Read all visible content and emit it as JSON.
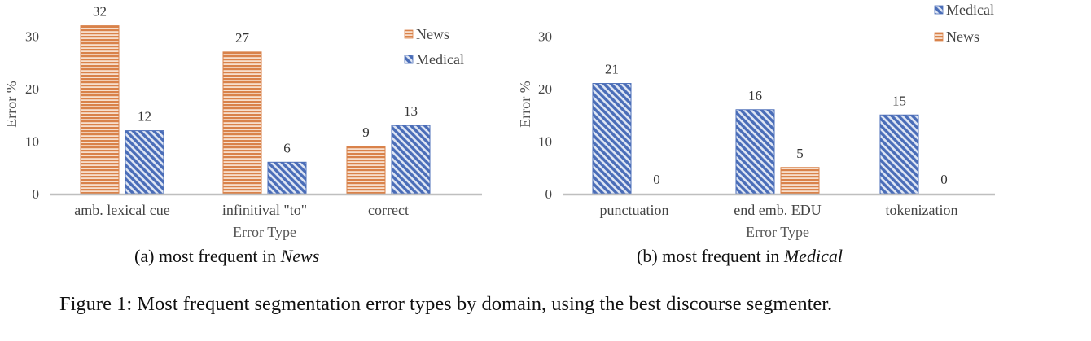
{
  "chart_data": [
    {
      "type": "bar",
      "categories": [
        "amb. lexical cue",
        "infinitival \"to\"",
        "correct"
      ],
      "series": [
        {
          "name": "News",
          "values": [
            32,
            27,
            9
          ],
          "color": "#d9824a",
          "pattern": "horizontal-stripes"
        },
        {
          "name": "Medical",
          "values": [
            12,
            6,
            13
          ],
          "color": "#4a6db8",
          "pattern": "diagonal-stripes"
        }
      ],
      "xlabel": "Error Type",
      "ylabel": "Error %",
      "yticks": [
        0,
        10,
        20,
        30
      ],
      "ylim": [
        0,
        32
      ],
      "grid": false,
      "legend": "top-right",
      "data_labels": true,
      "subcaption_prefix": "(a) most frequent in ",
      "subcaption_em": "News"
    },
    {
      "type": "bar",
      "categories": [
        "punctuation",
        "end emb. EDU",
        "tokenization"
      ],
      "series": [
        {
          "name": "Medical",
          "values": [
            21,
            16,
            15
          ],
          "color": "#4a6db8",
          "pattern": "diagonal-stripes"
        },
        {
          "name": "News",
          "values": [
            0,
            5,
            0
          ],
          "color": "#d9824a",
          "pattern": "horizontal-stripes"
        }
      ],
      "xlabel": "Error Type",
      "ylabel": "Error %",
      "yticks": [
        0,
        10,
        20,
        30
      ],
      "ylim": [
        0,
        32
      ],
      "grid": false,
      "legend": "top-right",
      "data_labels": true,
      "subcaption_prefix": "(b) most frequent in ",
      "subcaption_em": "Medical"
    }
  ],
  "caption": "Figure 1: Most frequent segmentation error types by domain, using the best discourse segmenter."
}
